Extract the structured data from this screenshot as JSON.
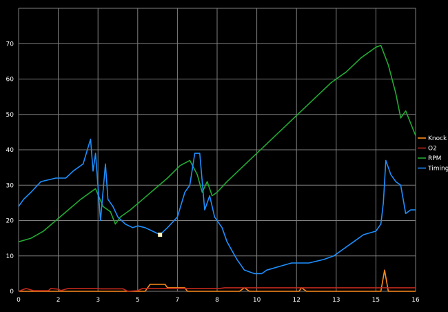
{
  "chart_data": {
    "type": "line",
    "background": "#000000",
    "grid": true,
    "grid_color": "#808080",
    "legend_position": "right",
    "title": "",
    "xlabel": "",
    "ylabel": "",
    "xlim": [
      0,
      16
    ],
    "ylim": [
      0,
      80
    ],
    "x_ticks": [
      "0",
      "2",
      "3",
      "5",
      "7",
      "8",
      "10",
      "12",
      "13",
      "15",
      "16"
    ],
    "x_tick_values": [
      0,
      1.6,
      3.2,
      4.8,
      6.4,
      8,
      9.6,
      11.2,
      12.8,
      14.4,
      16
    ],
    "y_ticks": [
      "0",
      "10",
      "20",
      "30",
      "40",
      "50",
      "60",
      "70"
    ],
    "y_tick_values": [
      0,
      10,
      20,
      30,
      40,
      50,
      60,
      70
    ],
    "marker": {
      "x": 5.7,
      "y": 16
    },
    "series": [
      {
        "name": "Knock",
        "color": "#ff8c1a",
        "points": [
          [
            0,
            0
          ],
          [
            5.1,
            0
          ],
          [
            5.3,
            2
          ],
          [
            5.9,
            2
          ],
          [
            6.0,
            1
          ],
          [
            6.7,
            1
          ],
          [
            6.8,
            0
          ],
          [
            8.9,
            0
          ],
          [
            9.1,
            1
          ],
          [
            9.3,
            0
          ],
          [
            11.3,
            0
          ],
          [
            11.4,
            1
          ],
          [
            11.6,
            0
          ],
          [
            14.6,
            0
          ],
          [
            14.75,
            6
          ],
          [
            14.9,
            0
          ],
          [
            16,
            0
          ]
        ]
      },
      {
        "name": "O2",
        "color": "#c0281c",
        "points": [
          [
            0,
            0
          ],
          [
            0.3,
            0.8
          ],
          [
            0.6,
            0.2
          ],
          [
            1.2,
            0.2
          ],
          [
            1.3,
            0.8
          ],
          [
            1.6,
            0.6
          ],
          [
            1.7,
            0.2
          ],
          [
            2.0,
            0.8
          ],
          [
            3.1,
            0.8
          ],
          [
            3.3,
            0.7
          ],
          [
            4.2,
            0.7
          ],
          [
            4.4,
            0
          ],
          [
            4.8,
            0.2
          ],
          [
            5.0,
            0.8
          ],
          [
            8.1,
            0.8
          ],
          [
            8.3,
            1
          ],
          [
            16,
            1
          ]
        ]
      },
      {
        "name": "RPM",
        "color": "#22aa33",
        "points": [
          [
            0,
            14
          ],
          [
            0.5,
            15
          ],
          [
            1.0,
            17
          ],
          [
            1.5,
            20
          ],
          [
            2.0,
            23
          ],
          [
            2.5,
            26
          ],
          [
            3.0,
            28.5
          ],
          [
            3.1,
            29
          ],
          [
            3.4,
            24
          ],
          [
            3.7,
            22.5
          ],
          [
            3.9,
            19
          ],
          [
            4.1,
            21
          ],
          [
            4.5,
            23
          ],
          [
            5.0,
            26
          ],
          [
            5.5,
            29
          ],
          [
            6.0,
            32
          ],
          [
            6.5,
            35.5
          ],
          [
            6.9,
            37
          ],
          [
            7.2,
            33
          ],
          [
            7.4,
            28
          ],
          [
            7.6,
            31
          ],
          [
            7.8,
            27
          ],
          [
            8.0,
            28
          ],
          [
            8.4,
            31
          ],
          [
            9.0,
            35
          ],
          [
            9.6,
            39
          ],
          [
            10.2,
            43
          ],
          [
            10.8,
            47
          ],
          [
            11.4,
            51
          ],
          [
            12.0,
            55
          ],
          [
            12.6,
            59
          ],
          [
            13.2,
            62
          ],
          [
            13.8,
            66
          ],
          [
            14.4,
            69
          ],
          [
            14.6,
            69.5
          ],
          [
            14.9,
            64
          ],
          [
            15.2,
            56
          ],
          [
            15.4,
            49
          ],
          [
            15.6,
            51
          ],
          [
            16,
            44
          ]
        ]
      },
      {
        "name": "Timing",
        "color": "#1e8fff",
        "points": [
          [
            0,
            24
          ],
          [
            0.2,
            26
          ],
          [
            0.5,
            28
          ],
          [
            0.9,
            31
          ],
          [
            1.5,
            32
          ],
          [
            1.9,
            32
          ],
          [
            2.2,
            34
          ],
          [
            2.6,
            36
          ],
          [
            2.9,
            43
          ],
          [
            3.0,
            34
          ],
          [
            3.1,
            39
          ],
          [
            3.3,
            20
          ],
          [
            3.5,
            36
          ],
          [
            3.6,
            26
          ],
          [
            3.8,
            24
          ],
          [
            4.0,
            21
          ],
          [
            4.3,
            19
          ],
          [
            4.6,
            18
          ],
          [
            4.8,
            18.5
          ],
          [
            5.1,
            18
          ],
          [
            5.4,
            17
          ],
          [
            5.7,
            16
          ],
          [
            6.0,
            18
          ],
          [
            6.4,
            21
          ],
          [
            6.7,
            28
          ],
          [
            6.9,
            30
          ],
          [
            7.1,
            39
          ],
          [
            7.3,
            39
          ],
          [
            7.5,
            23
          ],
          [
            7.7,
            27
          ],
          [
            7.9,
            21
          ],
          [
            8.2,
            18
          ],
          [
            8.4,
            14
          ],
          [
            8.8,
            9
          ],
          [
            9.1,
            6
          ],
          [
            9.5,
            5
          ],
          [
            9.8,
            5
          ],
          [
            10.0,
            6
          ],
          [
            10.5,
            7
          ],
          [
            11.0,
            8
          ],
          [
            11.7,
            8
          ],
          [
            12.3,
            9
          ],
          [
            12.7,
            10
          ],
          [
            13.1,
            12
          ],
          [
            13.5,
            14
          ],
          [
            13.9,
            16
          ],
          [
            14.4,
            17
          ],
          [
            14.6,
            19
          ],
          [
            14.7,
            25
          ],
          [
            14.8,
            37
          ],
          [
            15.0,
            33
          ],
          [
            15.2,
            31
          ],
          [
            15.4,
            30
          ],
          [
            15.6,
            22
          ],
          [
            15.8,
            23
          ],
          [
            16,
            23
          ]
        ]
      }
    ]
  }
}
